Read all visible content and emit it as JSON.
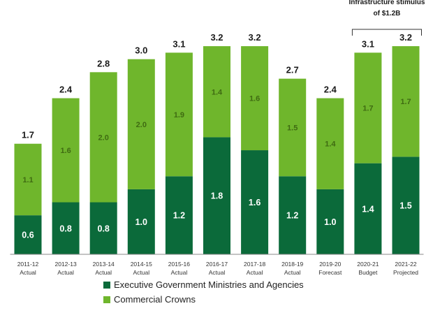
{
  "chart_data": {
    "type": "bar",
    "stacked": true,
    "title": "",
    "xlabel": "",
    "ylabel": "",
    "ylim": [
      0,
      3.6
    ],
    "grid": false,
    "legend_position": "bottom",
    "categories": [
      [
        "2011-12",
        "Actual"
      ],
      [
        "2012-13",
        "Actual"
      ],
      [
        "2013-14",
        "Actual"
      ],
      [
        "2014-15",
        "Actual"
      ],
      [
        "2015-16",
        "Actual"
      ],
      [
        "2016-17",
        "Actual"
      ],
      [
        "2017-18",
        "Actual"
      ],
      [
        "2018-19",
        "Actual"
      ],
      [
        "2019-20",
        "Forecast"
      ],
      [
        "2020-21",
        "Budget"
      ],
      [
        "2021-22",
        "Projected"
      ]
    ],
    "series": [
      {
        "name": "Executive Government Ministries and Agencies",
        "color": "#0b6a3a",
        "values": [
          0.6,
          0.8,
          0.8,
          1.0,
          1.2,
          1.8,
          1.6,
          1.2,
          1.0,
          1.4,
          1.5
        ]
      },
      {
        "name": "Commercial Crowns",
        "color": "#6fb62c",
        "values": [
          1.1,
          1.6,
          2.0,
          2.0,
          1.9,
          1.4,
          1.6,
          1.5,
          1.4,
          1.7,
          1.7
        ]
      }
    ],
    "totals": [
      "1.7",
      "2.4",
      "2.8",
      "3.0",
      "3.1",
      "3.2",
      "3.2",
      "2.7",
      "2.4",
      "3.1",
      "3.2"
    ],
    "segment_labels": [
      [
        "0.6",
        "0.8",
        "0.8",
        "1.0",
        "1.2",
        "1.8",
        "1.6",
        "1.2",
        "1.0",
        "1.4",
        "1.5"
      ],
      [
        "1.1",
        "1.6",
        "2.0",
        "2.0",
        "1.9",
        "1.4",
        "1.6",
        "1.5",
        "1.4",
        "1.7",
        "1.7"
      ]
    ],
    "annotation": {
      "lines": [
        "Infrastructure stimulus",
        "of $1.2B"
      ],
      "spans_categories": [
        9,
        10
      ]
    }
  }
}
